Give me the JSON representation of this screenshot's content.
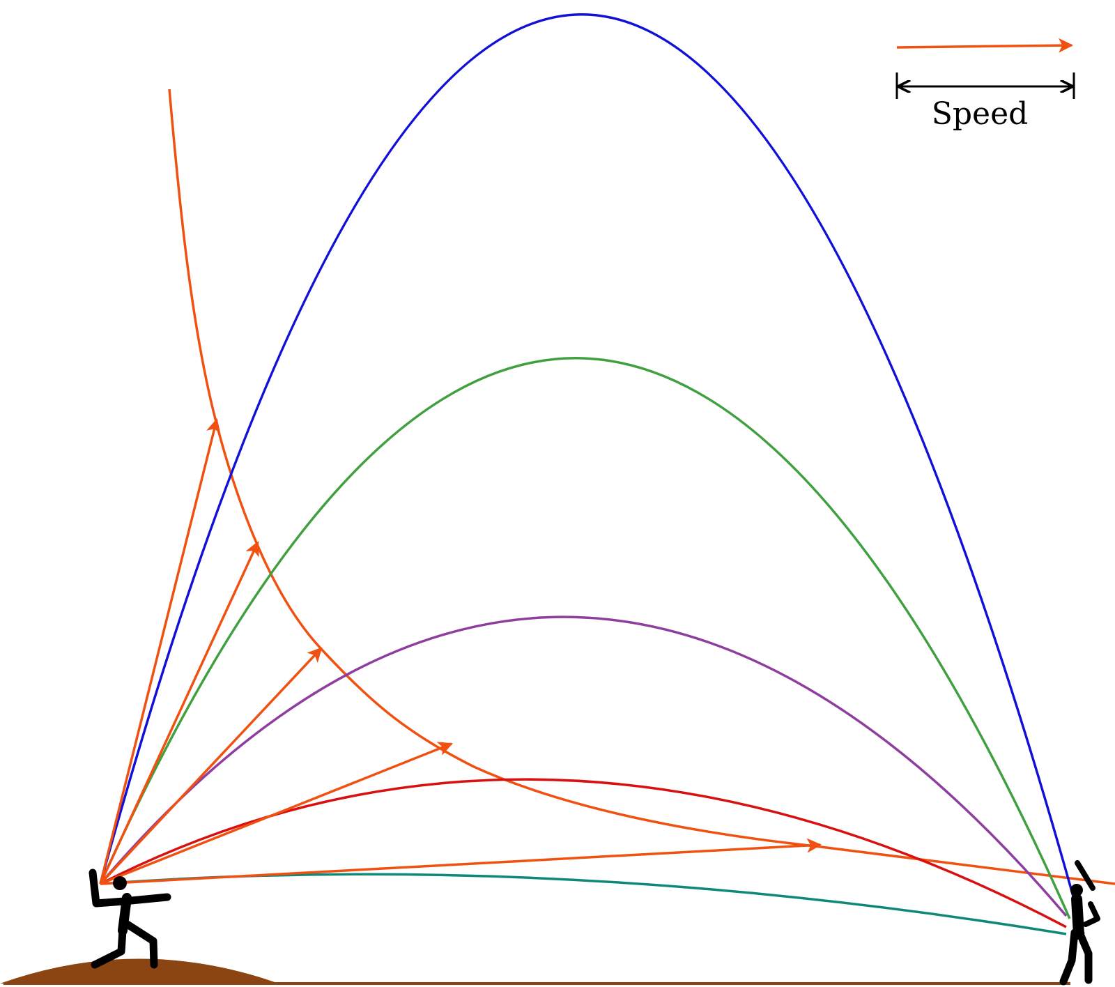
{
  "legend": {
    "speed_label": "Speed"
  },
  "colors": {
    "speed_vector": "#f05010",
    "speed_envelope_curve": "#f05010",
    "trajectory_1": "#1010d8",
    "trajectory_2": "#40a040",
    "trajectory_3": "#8e3e9e",
    "trajectory_4": "#d81010",
    "trajectory_5": "#108878",
    "mound": "#8b4513",
    "ground_line": "#8b4513",
    "figures": "#000000"
  },
  "icons": {
    "pitcher": "pitcher-figure-icon",
    "batter": "batter-figure-icon"
  }
}
